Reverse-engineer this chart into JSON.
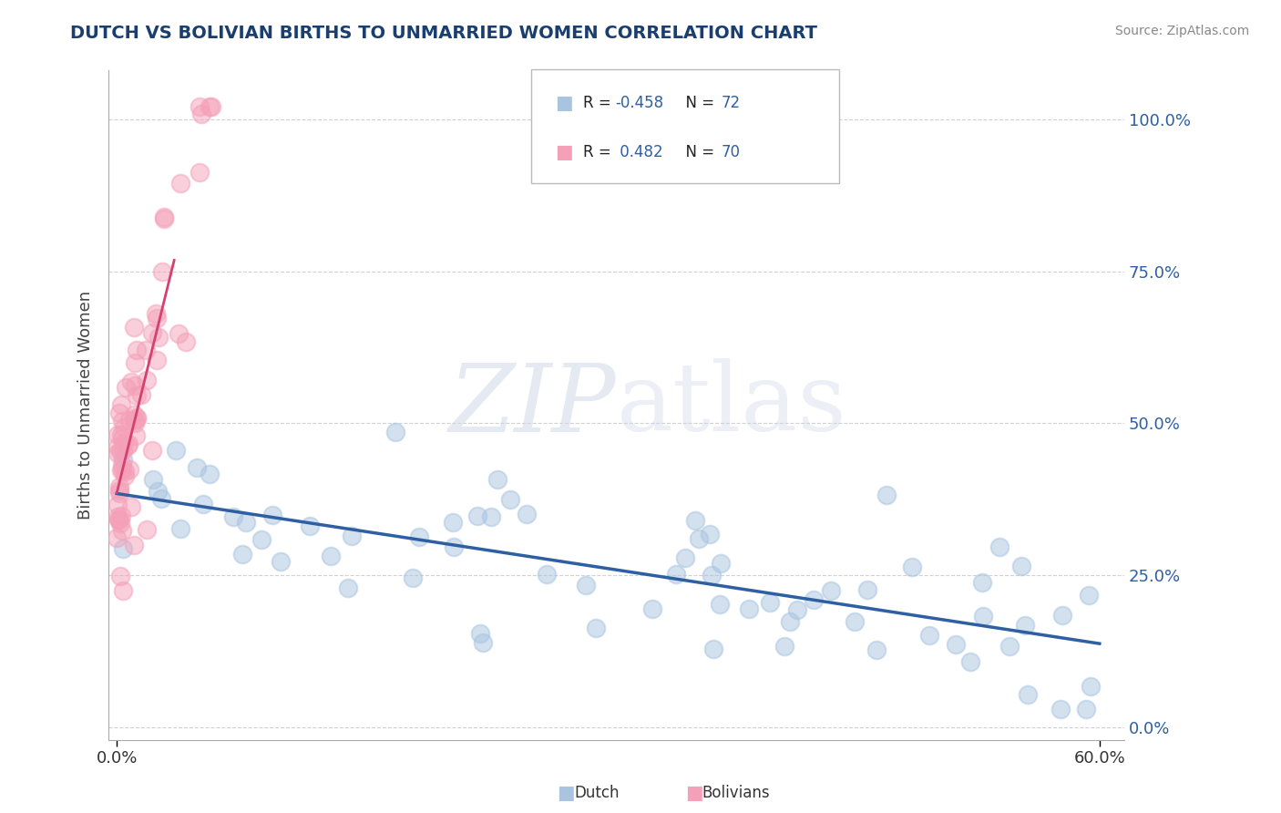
{
  "title": "DUTCH VS BOLIVIAN BIRTHS TO UNMARRIED WOMEN CORRELATION CHART",
  "source": "Source: ZipAtlas.com",
  "ylabel": "Births to Unmarried Women",
  "watermark": "ZIPatlas",
  "dutch_color": "#a8c4e0",
  "dutch_line_color": "#2e5fa3",
  "bolivian_color": "#f4a0b8",
  "bolivian_line_color": "#d44070",
  "title_color": "#1a3e6e",
  "legend_r_color": "#2e5fa3",
  "grid_color": "#cccccc",
  "xmin": 0.0,
  "xmax": 0.6,
  "ymin": 0.0,
  "ymax": 1.05,
  "right_yticks": [
    0.0,
    0.25,
    0.5,
    0.75,
    1.0
  ],
  "right_yticklabels": [
    "0.0%",
    "25.0%",
    "50.0%",
    "75.0%",
    "100.0%"
  ]
}
